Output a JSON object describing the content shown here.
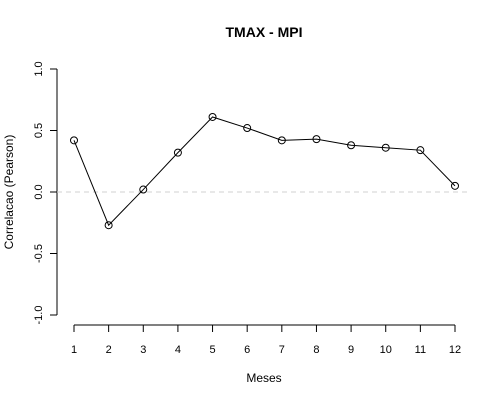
{
  "chart_data": {
    "type": "line",
    "title": "TMAX - MPI",
    "xlabel": "Meses",
    "ylabel": "Correlacao (Pearson)",
    "x": [
      1,
      2,
      3,
      4,
      5,
      6,
      7,
      8,
      9,
      10,
      11,
      12
    ],
    "x_ticks": [
      "1",
      "2",
      "3",
      "4",
      "5",
      "6",
      "7",
      "8",
      "9",
      "10",
      "11",
      "12"
    ],
    "y": [
      0.42,
      -0.27,
      0.02,
      0.32,
      0.61,
      0.52,
      0.42,
      0.43,
      0.38,
      0.36,
      0.34,
      0.05
    ],
    "y_ticks": [
      "-1.0",
      "-0.5",
      "0.0",
      "0.5",
      "1.0"
    ],
    "ylim": [
      -1.0,
      1.0
    ],
    "xlim": [
      1,
      12
    ],
    "reference_line": {
      "y": 0.0,
      "style": "dashed",
      "color": "#d0d0d0"
    },
    "marker": "open-circle",
    "grid": false,
    "legend": "none"
  }
}
